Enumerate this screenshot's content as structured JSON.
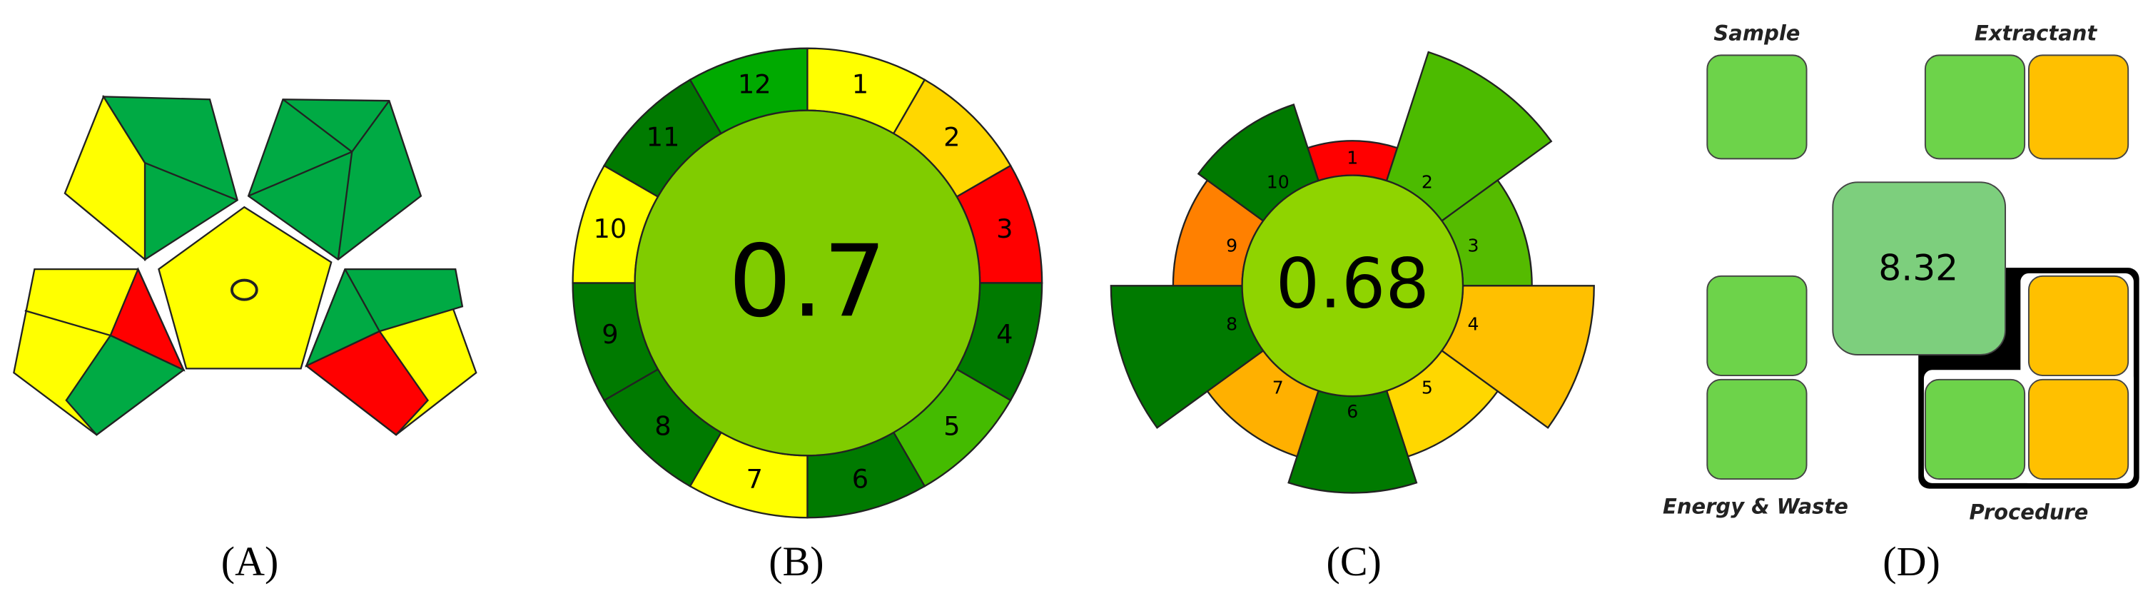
{
  "panels": [
    {
      "label": "(A)"
    },
    {
      "label": "(B)",
      "score": "0.7",
      "center_color": "#80cc00",
      "segments": [
        {
          "label": "1",
          "color": "#ffff00"
        },
        {
          "label": "2",
          "color": "#ffd700"
        },
        {
          "label": "3",
          "color": "#ff0000"
        },
        {
          "label": "4",
          "color": "#007a00"
        },
        {
          "label": "5",
          "color": "#44bb00"
        },
        {
          "label": "6",
          "color": "#007a00"
        },
        {
          "label": "7",
          "color": "#ffff00"
        },
        {
          "label": "8",
          "color": "#007a00"
        },
        {
          "label": "9",
          "color": "#007a00"
        },
        {
          "label": "10",
          "color": "#ffff00"
        },
        {
          "label": "11",
          "color": "#007a00"
        },
        {
          "label": "12",
          "color": "#00aa00"
        }
      ]
    },
    {
      "label": "(C)",
      "score": "0.68",
      "center_color": "#8fd400",
      "segments": [
        {
          "label": "1",
          "color": "#ff0000"
        },
        {
          "label": "2",
          "color": "#4cbb00"
        },
        {
          "label": "3",
          "color": "#55bb00"
        },
        {
          "label": "4",
          "color": "#ffc000"
        },
        {
          "label": "5",
          "color": "#ffd700"
        },
        {
          "label": "6",
          "color": "#007a00"
        },
        {
          "label": "7",
          "color": "#ffb000"
        },
        {
          "label": "8",
          "color": "#007a00"
        },
        {
          "label": "9",
          "color": "#ff8000"
        },
        {
          "label": "10",
          "color": "#007a00"
        }
      ]
    },
    {
      "label": "(D)",
      "score": "8.32",
      "sample": "Sample",
      "extractant": "Extractant",
      "energy_waste": "Energy & Waste",
      "procedure": "Procedure"
    }
  ]
}
